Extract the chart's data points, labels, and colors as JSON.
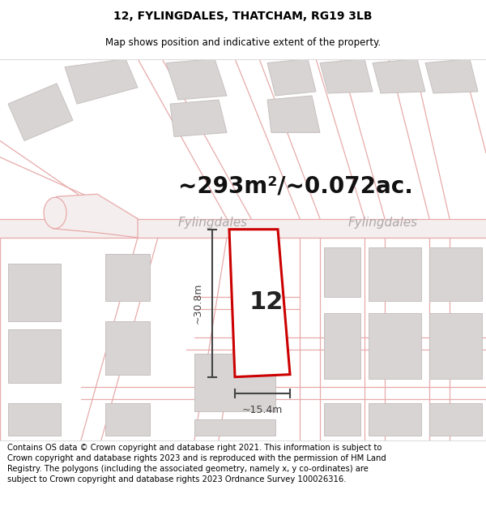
{
  "title": "12, FYLINGDALES, THATCHAM, RG19 3LB",
  "subtitle": "Map shows position and indicative extent of the property.",
  "area_text": "~293m²/~0.072ac.",
  "street_name": "Fylingdales",
  "plot_number": "12",
  "dim_width": "~15.4m",
  "dim_height": "~30.8m",
  "footer_text": "Contains OS data © Crown copyright and database right 2021. This information is subject to Crown copyright and database rights 2023 and is reproduced with the permission of HM Land Registry. The polygons (including the associated geometry, namely x, y co-ordinates) are subject to Crown copyright and database rights 2023 Ordnance Survey 100026316.",
  "bg_color": "#ffffff",
  "map_bg": "#f9f7f7",
  "road_line_color": "#e8aaaa",
  "building_fill": "#d8d4d4",
  "building_stroke": "#c8c0c0",
  "plot_stroke": "#cc0000",
  "plot_fill": "#ffffff",
  "dim_color": "#444444",
  "title_fontsize": 10,
  "subtitle_fontsize": 8.5,
  "area_fontsize": 20,
  "street_fontsize": 11,
  "plot_num_fontsize": 22,
  "footer_fontsize": 7.2
}
